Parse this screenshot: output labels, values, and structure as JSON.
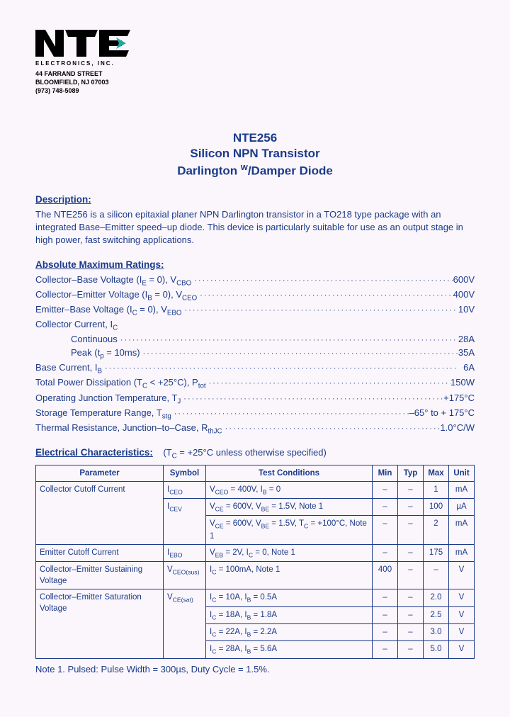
{
  "colors": {
    "text": "#1a3a8a",
    "page_bg": "#fbf6fb",
    "logo_black": "#000000",
    "logo_accent": "#1ea89a"
  },
  "logo": {
    "company_sub": "ELECTRONICS, INC.",
    "address_line1": "44 FARRAND STREET",
    "address_line2": "BLOOMFIELD, NJ 07003",
    "address_line3": "(973) 748-5089"
  },
  "title": {
    "line1": "NTE256",
    "line2": "Silicon NPN Transistor",
    "line3_a": "Darlington ",
    "line3_sup": "w",
    "line3_b": "/Damper Diode"
  },
  "description": {
    "heading": "Description:",
    "text": "The NTE256 is a silicon epitaxial planer NPN Darlington transistor in a TO218 type package with an integrated Base–Emitter speed–up diode.  This device is particularly suitable for use as an output stage in high power, fast switching applications."
  },
  "ratings": {
    "heading": "Absolute Maximum Ratings:",
    "rows": [
      {
        "label_html": "Collector–Base Voltagte (I<sub>E</sub> = 0), V<sub>CBO</sub>",
        "value": "600V",
        "indent": false,
        "dots": true
      },
      {
        "label_html": "Collector–Emitter Voltage (I<sub>B</sub> = 0), V<sub>CEO</sub>",
        "value": "400V",
        "indent": false,
        "dots": true
      },
      {
        "label_html": "Emitter–Base Voltage (I<sub>C</sub> = 0), V<sub>EBO</sub>",
        "value": "10V",
        "indent": false,
        "dots": true
      },
      {
        "label_html": "Collector Current, I<sub>C</sub>",
        "value": "",
        "indent": false,
        "dots": false
      },
      {
        "label_html": "Continuous",
        "value": "28A",
        "indent": true,
        "dots": true
      },
      {
        "label_html": "Peak (t<sub>p</sub> = 10ms)",
        "value": "35A",
        "indent": true,
        "dots": true
      },
      {
        "label_html": "Base Current, I<sub>B</sub>",
        "value": "6A",
        "indent": false,
        "dots": true
      },
      {
        "label_html": "Total Power Dissipation (T<sub>C</sub> < +25°C), P<sub>tot</sub>",
        "value": "150W",
        "indent": false,
        "dots": true
      },
      {
        "label_html": "Operating Junction Temperature, T<sub>J</sub>",
        "value": "+175°C",
        "indent": false,
        "dots": true
      },
      {
        "label_html": "Storage Temperature Range, T<sub>stg</sub>",
        "value": "–65° to + 175°C",
        "indent": false,
        "dots": true
      },
      {
        "label_html": "Thermal Resistance, Junction–to–Case, R<sub>thJC</sub>",
        "value": "1.0°C/W",
        "indent": false,
        "dots": true
      }
    ]
  },
  "electrical": {
    "heading": "Electrical Characteristics:",
    "condition_note_html": "(T<sub>C</sub> = +25°C unless otherwise specified)",
    "columns": [
      "Parameter",
      "Symbol",
      "Test Conditions",
      "Min",
      "Typ",
      "Max",
      "Unit"
    ],
    "rows": [
      {
        "param": "Collector Cutoff Current",
        "param_rowspan": 3,
        "symbol_html": "I<sub>CEO</sub>",
        "symbol_rowspan": 1,
        "cond_html": "V<sub>CEO</sub> = 400V, I<sub>B</sub> = 0",
        "min": "–",
        "typ": "–",
        "max": "1",
        "unit": "mA"
      },
      {
        "param": null,
        "symbol_html": "I<sub>CEV</sub>",
        "symbol_rowspan": 2,
        "cond_html": "V<sub>CE</sub> = 600V, V<sub>BE</sub> = 1.5V, Note 1",
        "min": "–",
        "typ": "–",
        "max": "100",
        "unit": "µA"
      },
      {
        "param": null,
        "symbol_html": null,
        "cond_html": "V<sub>CE</sub> = 600V, V<sub>BE</sub> = 1.5V, T<sub>C</sub> = +100°C, Note 1",
        "min": "–",
        "typ": "–",
        "max": "2",
        "unit": "mA"
      },
      {
        "param": "Emitter Cutoff Current",
        "param_rowspan": 1,
        "symbol_html": "I<sub>EBO</sub>",
        "symbol_rowspan": 1,
        "cond_html": "V<sub>EB</sub> = 2V, I<sub>C</sub> = 0, Note 1",
        "min": "–",
        "typ": "–",
        "max": "175",
        "unit": "mA"
      },
      {
        "param": "Collector–Emitter Sustaining Voltage",
        "param_rowspan": 1,
        "symbol_html": "V<sub>CEO(sus)</sub>",
        "symbol_rowspan": 1,
        "cond_html": "I<sub>C</sub> = 100mA, Note 1",
        "min": "400",
        "typ": "–",
        "max": "–",
        "unit": "V"
      },
      {
        "param": "Collector–Emitter Saturation Voltage",
        "param_rowspan": 4,
        "symbol_html": "V<sub>CE(sat)</sub>",
        "symbol_rowspan": 4,
        "cond_html": "I<sub>C</sub> = 10A, I<sub>B</sub> = 0.5A",
        "min": "–",
        "typ": "–",
        "max": "2.0",
        "unit": "V"
      },
      {
        "param": null,
        "symbol_html": null,
        "cond_html": "I<sub>C</sub> = 18A, I<sub>B</sub> = 1.8A",
        "min": "–",
        "typ": "–",
        "max": "2.5",
        "unit": "V"
      },
      {
        "param": null,
        "symbol_html": null,
        "cond_html": "I<sub>C</sub> = 22A, I<sub>B</sub> = 2.2A",
        "min": "–",
        "typ": "–",
        "max": "3.0",
        "unit": "V"
      },
      {
        "param": null,
        "symbol_html": null,
        "cond_html": "I<sub>C</sub> = 28A, I<sub>B</sub> = 5.6A",
        "min": "–",
        "typ": "–",
        "max": "5.0",
        "unit": "V"
      }
    ]
  },
  "footnote": "Note  1. Pulsed:  Pulse Width = 300µs, Duty Cycle = 1.5%."
}
